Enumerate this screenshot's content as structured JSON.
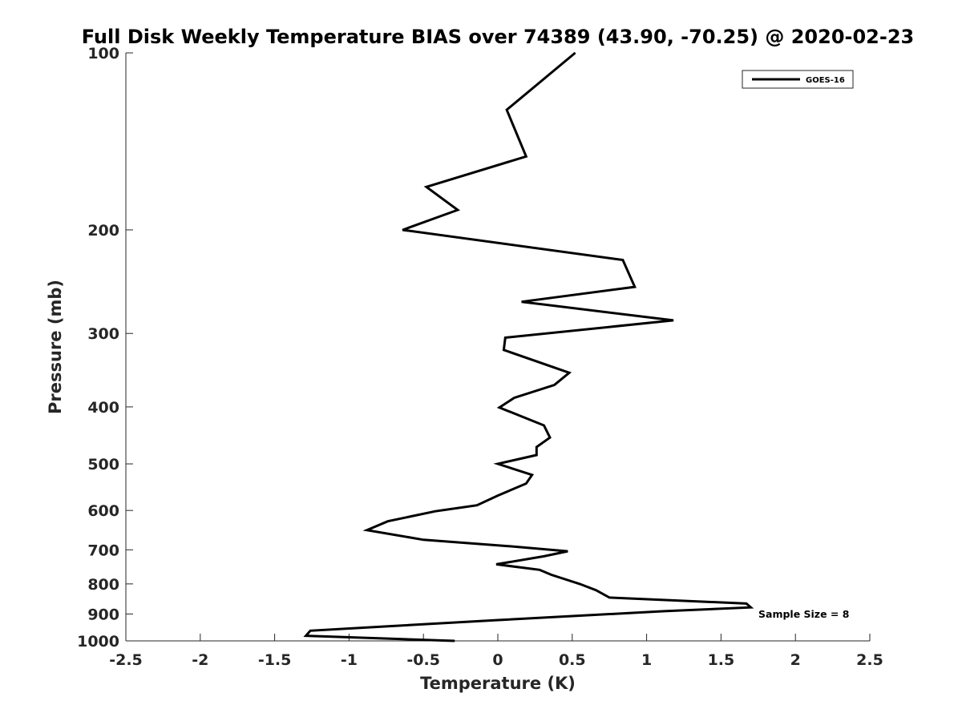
{
  "chart_data": {
    "type": "line",
    "title": "Full Disk Weekly Temperature BIAS over 74389 (43.90, -70.25) @ 2020-02-23",
    "xlabel": "Temperature (K)",
    "ylabel": "Pressure (mb)",
    "xlim": [
      -2.5,
      2.5
    ],
    "ylim": [
      100,
      1000
    ],
    "yscale": "log",
    "yreversed": true,
    "grid": false,
    "legend_position": "top-right",
    "x_ticks": [
      "-2.5",
      "-2",
      "-1.5",
      "-1",
      "-0.5",
      "0",
      "0.5",
      "1",
      "1.5",
      "2",
      "2.5"
    ],
    "y_ticks": [
      "100",
      "200",
      "300",
      "400",
      "500",
      "600",
      "700",
      "800",
      "900",
      "1000"
    ],
    "series": [
      {
        "name": "GOES-16",
        "color": "#000000",
        "points": [
          {
            "x": 0.52,
            "y": 100
          },
          {
            "x": 0.06,
            "y": 125
          },
          {
            "x": 0.19,
            "y": 150
          },
          {
            "x": -0.48,
            "y": 169
          },
          {
            "x": -0.27,
            "y": 185
          },
          {
            "x": -0.64,
            "y": 200
          },
          {
            "x": 0.84,
            "y": 225
          },
          {
            "x": 0.92,
            "y": 250
          },
          {
            "x": 0.16,
            "y": 265
          },
          {
            "x": 1.18,
            "y": 285
          },
          {
            "x": 0.05,
            "y": 305
          },
          {
            "x": 0.04,
            "y": 320
          },
          {
            "x": 0.48,
            "y": 350
          },
          {
            "x": 0.38,
            "y": 367
          },
          {
            "x": 0.11,
            "y": 386
          },
          {
            "x": 0.01,
            "y": 401
          },
          {
            "x": 0.31,
            "y": 430
          },
          {
            "x": 0.35,
            "y": 451
          },
          {
            "x": 0.26,
            "y": 468
          },
          {
            "x": 0.26,
            "y": 483
          },
          {
            "x": 0.0,
            "y": 500
          },
          {
            "x": 0.23,
            "y": 522
          },
          {
            "x": 0.19,
            "y": 540
          },
          {
            "x": 0.0,
            "y": 566
          },
          {
            "x": -0.14,
            "y": 588
          },
          {
            "x": -0.42,
            "y": 602
          },
          {
            "x": -0.74,
            "y": 626
          },
          {
            "x": -0.88,
            "y": 648
          },
          {
            "x": -0.5,
            "y": 673
          },
          {
            "x": 0.07,
            "y": 690
          },
          {
            "x": 0.47,
            "y": 704
          },
          {
            "x": 0.31,
            "y": 718
          },
          {
            "x": -0.01,
            "y": 741
          },
          {
            "x": 0.28,
            "y": 757
          },
          {
            "x": 0.36,
            "y": 772
          },
          {
            "x": 0.55,
            "y": 800
          },
          {
            "x": 0.66,
            "y": 820
          },
          {
            "x": 0.75,
            "y": 844
          },
          {
            "x": 1.67,
            "y": 864
          },
          {
            "x": 1.7,
            "y": 877
          },
          {
            "x": 1.12,
            "y": 890
          },
          {
            "x": -0.01,
            "y": 922
          },
          {
            "x": -0.76,
            "y": 945
          },
          {
            "x": -1.26,
            "y": 961
          },
          {
            "x": -1.29,
            "y": 980
          },
          {
            "x": -0.29,
            "y": 1000
          }
        ]
      }
    ],
    "legend": {
      "entries": [
        "GOES-16"
      ]
    },
    "annotation": "Sample Size = 8"
  }
}
